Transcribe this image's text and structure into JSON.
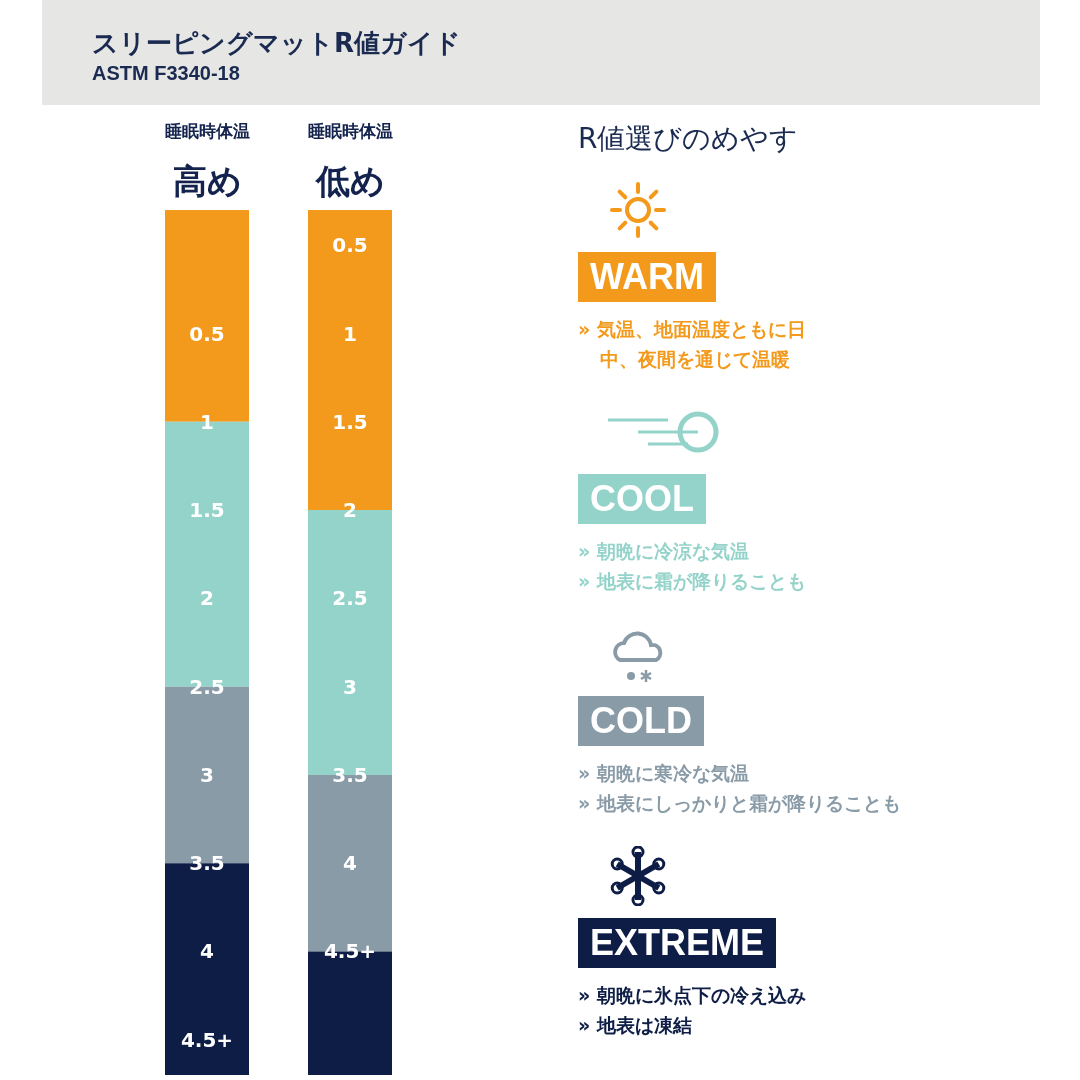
{
  "chart_data": [
    {
      "type": "other",
      "title": "スリーピングマットR値ガイド",
      "subtitle": "ASTM F3340-18"
    },
    {
      "type": "bar",
      "xlabel": "睡眠時体温",
      "categories": [
        "高め"
      ],
      "ylim": [
        4.7,
        -0.2
      ],
      "yticks": [
        0.5,
        1,
        1.5,
        2,
        2.5,
        3,
        3.5,
        4,
        {
          "value": 4.5,
          "label": "4.5+"
        }
      ],
      "legend": "right",
      "legend_title": "R値選びのめやす",
      "series": [
        {
          "name": "WARM",
          "color": "#f39a1c",
          "base": [
            -0.2
          ],
          "values": [
            1.2
          ]
        },
        {
          "name": "COOL",
          "color": "#94d3ca",
          "base": [
            1
          ],
          "values": [
            1.5
          ]
        },
        {
          "name": "COLD",
          "color": "#8a9ba8",
          "base": [
            2.5
          ],
          "values": [
            1
          ]
        },
        {
          "name": "EXTREME",
          "color": "#0e1d45",
          "base": [
            3.5
          ],
          "values": [
            1.2
          ]
        }
      ],
      "annotations": [
        "» 気温、地面温度ともに日中、夜間を通じて温暖",
        "» 朝晩に冷涼な気温\n» 地表に霜が降りることも",
        "» 朝晩に寒冷な気温\n» 地表にしっかりと霜が降りることも",
        "» 朝晩に氷点下の冷え込み\n» 地表は凍結"
      ]
    },
    {
      "type": "bar",
      "xlabel": "睡眠時体温",
      "categories": [
        "低め"
      ],
      "ylim": [
        5.2,
        0.3
      ],
      "yticks": [
        0.5,
        1,
        1.5,
        2,
        2.5,
        3,
        3.5,
        4,
        {
          "value": 4.5,
          "label": "4.5+"
        }
      ],
      "series": [
        {
          "color": "#f39a1c",
          "base": [
            0.3
          ],
          "values": [
            1.7
          ]
        },
        {
          "color": "#94d3ca",
          "base": [
            2
          ],
          "values": [
            1.5
          ]
        },
        {
          "color": "#8a9ba8",
          "base": [
            3.5
          ],
          "values": [
            1
          ]
        },
        {
          "color": "#0e1d45",
          "base": [
            4.5
          ],
          "values": [
            0.7
          ]
        }
      ]
    }
  ]
}
